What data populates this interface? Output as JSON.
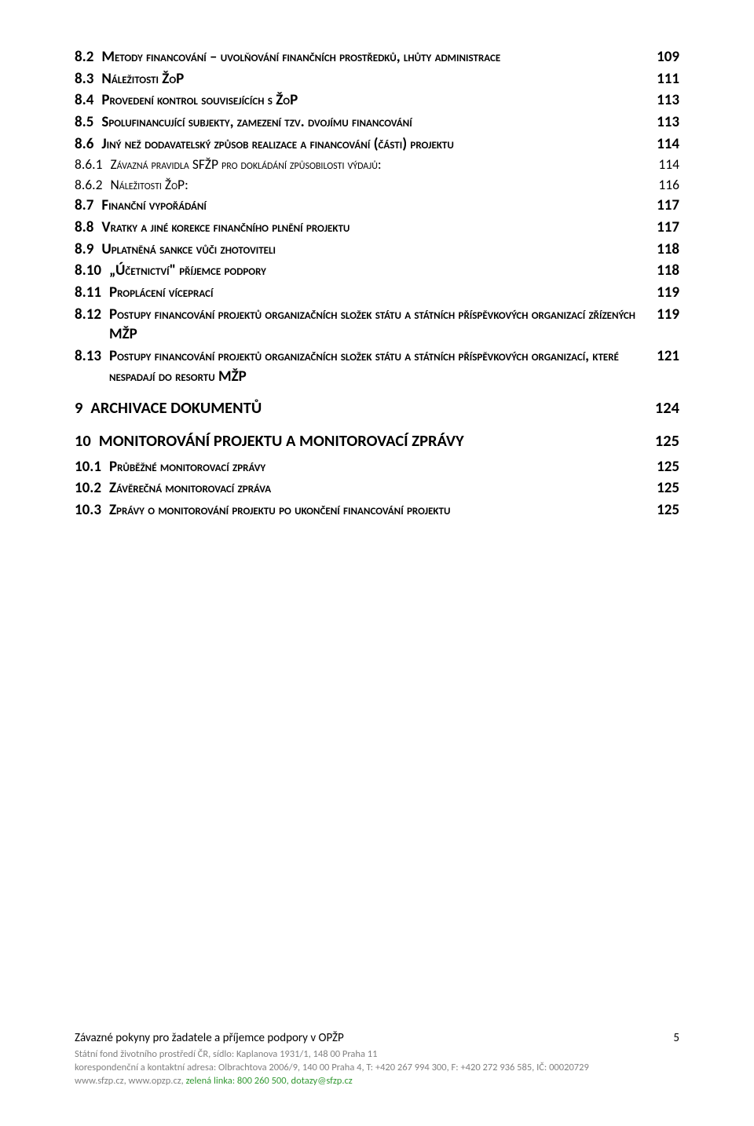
{
  "toc": [
    {
      "level": "h2",
      "num": "8.2",
      "text": "Metody financování – uvolňování finančních prostředků, lhůty administrace",
      "page": "109"
    },
    {
      "level": "h2",
      "num": "8.3",
      "text": "Náležitosti ŽoP",
      "page": "111"
    },
    {
      "level": "h2",
      "num": "8.4",
      "text": "Provedení kontrol souvisejících s ŽoP",
      "page": "113"
    },
    {
      "level": "h2",
      "num": "8.5",
      "text": "Spolufinancující subjekty, zamezení tzv. dvojímu financování",
      "page": "113"
    },
    {
      "level": "h2",
      "num": "8.6",
      "text": "Jiný než dodavatelský způsob realizace a financování (části) projektu",
      "page": "114"
    },
    {
      "level": "h3",
      "num": "8.6.1",
      "text": "Závazná pravidla SFŽP pro dokládání způsobilosti výdajů:",
      "page": "114"
    },
    {
      "level": "h3",
      "num": "8.6.2",
      "text": "Náležitosti ŽoP:",
      "page": "116"
    },
    {
      "level": "h2",
      "num": "8.7",
      "text": "Finanční vypořádání",
      "page": "117"
    },
    {
      "level": "h2",
      "num": "8.8",
      "text": "Vratky a jiné korekce finančního plnění projektu",
      "page": "117"
    },
    {
      "level": "h2",
      "num": "8.9",
      "text": "Uplatněná sankce vůči zhotoviteli",
      "page": "118"
    },
    {
      "level": "h2",
      "num": "8.10",
      "text": "„Účetnictví\" příjemce podpory",
      "page": "118"
    },
    {
      "level": "h2",
      "num": "8.11",
      "text": "Proplácení víceprací",
      "page": "119"
    },
    {
      "level": "h2",
      "num": "8.12",
      "text": "Postupy financování projektů organizačních složek státu a státních příspěvkových organizací zřízených MŽP",
      "page": "119"
    },
    {
      "level": "h2",
      "num": "8.13",
      "text": "Postupy financování projektů organizačních složek státu a státních příspěvkových organizací, které nespadají do resortu MŽP",
      "page": "121"
    },
    {
      "level": "h1",
      "num": "9",
      "text": "ARCHIVACE DOKUMENTŮ",
      "page": "124"
    },
    {
      "level": "h1",
      "num": "10",
      "text": "MONITOROVÁNÍ PROJEKTU A MONITOROVACÍ ZPRÁVY",
      "page": "125"
    },
    {
      "level": "h2",
      "num": "10.1",
      "text": "Průběžné monitorovací zprávy",
      "page": "125"
    },
    {
      "level": "h2",
      "num": "10.2",
      "text": "Závěrečná monitorovací zpráva",
      "page": "125"
    },
    {
      "level": "h2",
      "num": "10.3",
      "text": "Zprávy o monitorování projektu po ukončení financování projektu",
      "page": "125"
    }
  ],
  "footer": {
    "title": "Závazné pokyny pro žadatele a příjemce podpory v OPŽP",
    "line1": "Státní fond životního prostředí ČR, sídlo: Kaplanova 1931/1, 148 00  Praha 11",
    "line2": "korespondenční a kontaktní adresa: Olbrachtova 2006/9, 140 00  Praha 4, T: +420 267 994 300, F: +420 272 936 585, IČ: 00020729",
    "line3_a": "www.sfzp.cz, www.opzp.cz, ",
    "line3_b": "zelená linka: 800 260 500, dotazy@sfzp.cz",
    "pagenum": "5"
  }
}
